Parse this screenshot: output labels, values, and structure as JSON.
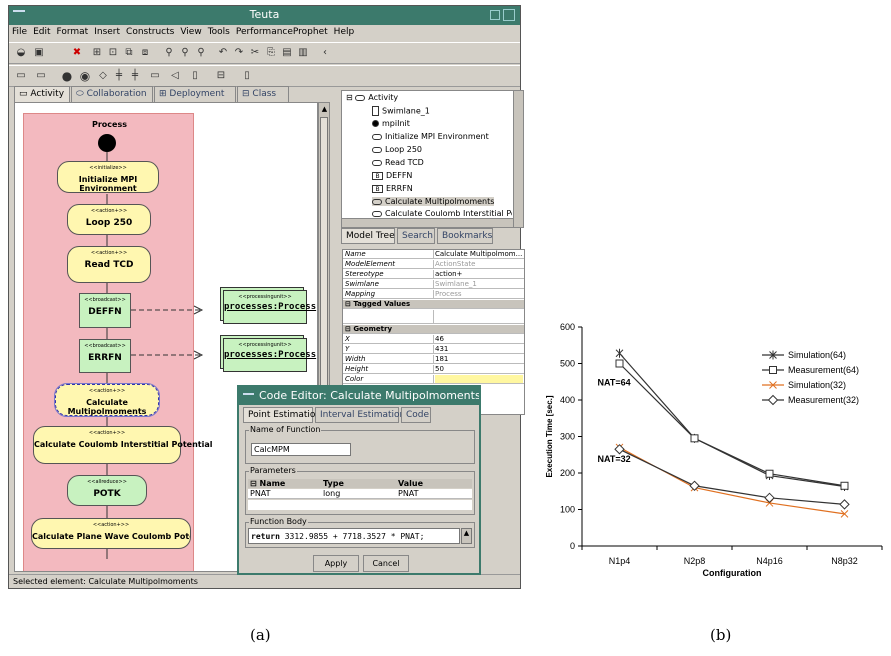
{
  "window": {
    "title": "Teuta",
    "menu": [
      "File",
      "Edit",
      "Format",
      "Insert",
      "Constructs",
      "View",
      "Tools",
      "PerformanceProphet",
      "Help"
    ]
  },
  "diagram_tabs": [
    {
      "label": "Activity",
      "icon": "rounded-rect-icon"
    },
    {
      "label": "Collaboration",
      "icon": "ellipse-icon"
    },
    {
      "label": "Deployment",
      "icon": "deployment-icon"
    },
    {
      "label": "Class",
      "icon": "class-icon"
    }
  ],
  "diagram": {
    "swimlane_title": "Process",
    "nodes": [
      {
        "stereotype": "<<initialize>>",
        "label": "Initialize MPI Environment",
        "kind": "action"
      },
      {
        "stereotype": "<<action+>>",
        "label": "Loop 250",
        "kind": "action"
      },
      {
        "stereotype": "<<action+>>",
        "label": "Read TCD",
        "kind": "action"
      },
      {
        "stereotype": "<<broadcast>>",
        "label": "DEFFN",
        "kind": "comm"
      },
      {
        "stereotype": "<<broadcast>>",
        "label": "ERRFN",
        "kind": "comm"
      },
      {
        "stereotype": "<<action+>>",
        "label": "Calculate Multipolmoments",
        "kind": "action-selected"
      },
      {
        "stereotype": "<<action+>>",
        "label": "Calculate Coulomb Interstitial Potential",
        "kind": "action"
      },
      {
        "stereotype": "<<allreduce>>",
        "label": "POTK",
        "kind": "comm-round"
      },
      {
        "stereotype": "<<action+>>",
        "label": "Calculate Plane Wave Coulomb Potential",
        "kind": "action"
      }
    ],
    "processing_units": [
      {
        "stereotype": "<<processingunit>>",
        "label": "processes:Process"
      },
      {
        "stereotype": "<<processingunit>>",
        "label": "processes:Process"
      }
    ]
  },
  "tree": {
    "items": [
      {
        "label": "Activity",
        "icon": "rounded-rect-icon",
        "indent": 0
      },
      {
        "label": "Swimlane_1",
        "icon": "document-icon",
        "indent": 1
      },
      {
        "label": "mpiInit",
        "icon": "initial-node-icon",
        "indent": 1
      },
      {
        "label": "Initialize MPI Environment",
        "icon": "rounded-rect-icon",
        "indent": 1
      },
      {
        "label": "Loop 250",
        "icon": "rounded-rect-icon",
        "indent": 1
      },
      {
        "label": "Read TCD",
        "icon": "rounded-rect-icon",
        "indent": 1
      },
      {
        "label": "DEFFN",
        "icon": "comm-icon",
        "indent": 1
      },
      {
        "label": "ERRFN",
        "icon": "comm-icon",
        "indent": 1
      },
      {
        "label": "Calculate Multipolmoments",
        "icon": "rounded-rect-icon",
        "indent": 1,
        "selected": true
      },
      {
        "label": "Calculate Coulomb Interstitial Potent",
        "icon": "rounded-rect-icon",
        "indent": 1
      }
    ],
    "tabs": [
      "Model Tree",
      "Search",
      "Bookmarks"
    ],
    "comm_icon_letter": "B"
  },
  "properties": {
    "rows": [
      {
        "key": "Name",
        "value": "Calculate Multipolmom...",
        "dim": false
      },
      {
        "key": "ModelElement",
        "value": "ActionState",
        "dim": true
      },
      {
        "key": "Stereotype",
        "value": "action+",
        "dim": false
      },
      {
        "key": "Swimlane",
        "value": "Swimlane_1",
        "dim": true
      },
      {
        "key": "Mapping",
        "value": "Process",
        "dim": true
      }
    ],
    "section_tagged": "Tagged Values",
    "section_geometry": "Geometry",
    "geometry": [
      {
        "key": "X",
        "value": "46"
      },
      {
        "key": "Y",
        "value": "431"
      },
      {
        "key": "Width",
        "value": "181"
      },
      {
        "key": "Height",
        "value": "50"
      },
      {
        "key": "Color",
        "value": ""
      }
    ]
  },
  "code_editor": {
    "title": "Code Editor: Calculate Multipolmoments",
    "tabs": [
      "Point Estimation",
      "Interval Estimation",
      "Code"
    ],
    "function_name_label": "Name of Function",
    "function_name": "CalcMPM",
    "parameters_label": "Parameters",
    "param_headers": [
      "Name",
      "Type",
      "Value"
    ],
    "params": [
      [
        "PNAT",
        "long",
        "PNAT"
      ]
    ],
    "body_label": "Function Body",
    "body_keyword": "return",
    "body_code": "3312.9855 + 7718.3527 * PNAT;",
    "apply_label": "Apply",
    "cancel_label": "Cancel"
  },
  "status": {
    "text": "Selected element: Calculate Multipolmoments"
  },
  "captions": {
    "a": "(a)",
    "b": "(b)"
  },
  "chart_data": {
    "type": "line",
    "categories": [
      "N1p4",
      "N2p8",
      "N4p16",
      "N8p32"
    ],
    "xlabel": "Configuration",
    "ylabel": "Execution Time [sec.]",
    "ylim": [
      0,
      600
    ],
    "yticks": [
      0,
      100,
      200,
      300,
      400,
      500,
      600
    ],
    "legend": "top-right",
    "series": [
      {
        "name": "Simulation(64)",
        "values": [
          528,
          295,
          193,
          163
        ],
        "color": "#333333",
        "marker": "asterisk"
      },
      {
        "name": "Measurement(64)",
        "values": [
          500,
          295,
          198,
          165
        ],
        "color": "#333333",
        "marker": "square"
      },
      {
        "name": "Simulation(32)",
        "values": [
          270,
          160,
          118,
          88
        ],
        "color": "#e07020",
        "marker": "x"
      },
      {
        "name": "Measurement(32)",
        "values": [
          265,
          165,
          132,
          114
        ],
        "color": "#333333",
        "marker": "diamond"
      }
    ],
    "annotations": [
      {
        "text": "NAT=64",
        "at_value": 440,
        "at_category": 0
      },
      {
        "text": "NAT=32",
        "at_value": 230,
        "at_category": 0
      }
    ]
  }
}
